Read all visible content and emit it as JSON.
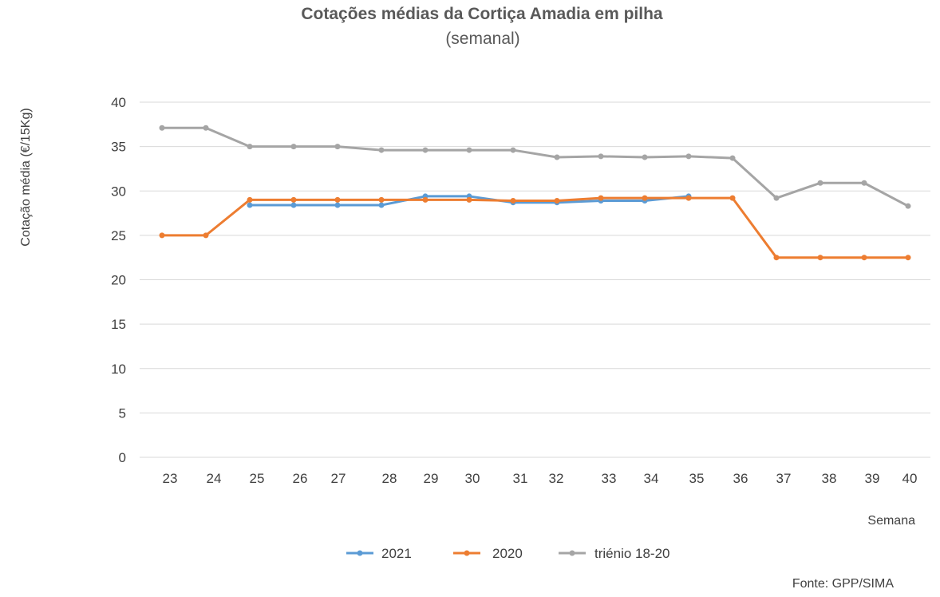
{
  "chart_data": {
    "type": "line",
    "title": "Cotações médias da Cortiça Amadia em pilha",
    "subtitle": "(semanal)",
    "ylabel": "Cotação média (€/15Kg)",
    "xlabel": "Semana",
    "source": "Fonte: GPP/SIMA",
    "ylim": [
      0,
      40
    ],
    "yticks": [
      0,
      5,
      10,
      15,
      20,
      25,
      30,
      35,
      40
    ],
    "grid": true,
    "legend_position": "bottom",
    "categories": [
      "23",
      "24",
      "25",
      "26",
      "27",
      "28",
      "29",
      "30",
      "31",
      "32",
      "33",
      "34",
      "35",
      "36",
      "37",
      "38",
      "39",
      "40"
    ],
    "series": [
      {
        "name": "2021",
        "color": "#5B9BD5",
        "values": [
          null,
          null,
          28.4,
          28.4,
          28.4,
          28.4,
          29.4,
          29.4,
          28.7,
          28.7,
          28.9,
          28.9,
          29.4,
          null,
          null,
          null,
          null,
          null
        ]
      },
      {
        "name": "2020",
        "color": "#ED7D31",
        "values": [
          25.0,
          25.0,
          29.0,
          29.0,
          29.0,
          29.0,
          29.0,
          29.0,
          28.9,
          28.9,
          29.2,
          29.2,
          29.2,
          29.2,
          22.5,
          22.5,
          22.5,
          22.5
        ]
      },
      {
        "name": "triénio 18-20",
        "color": "#A5A5A5",
        "values": [
          37.1,
          37.1,
          35.0,
          35.0,
          35.0,
          34.6,
          34.6,
          34.6,
          34.6,
          33.8,
          33.9,
          33.8,
          33.9,
          33.7,
          29.2,
          30.9,
          30.9,
          28.3
        ]
      }
    ]
  }
}
